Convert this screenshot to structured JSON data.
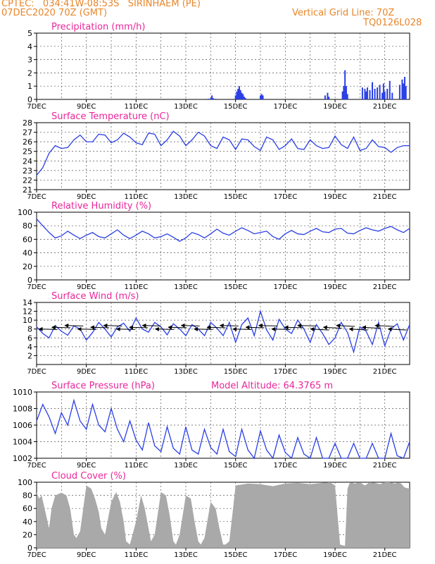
{
  "header": {
    "line1": "CPTEC:   034:41W-08:53S   SIRINHAEM (PE)",
    "line2": "07DEC2020 70Z (GMT)",
    "grid_note": "Vertical Grid Line: 70Z",
    "code": "TQ0126L028",
    "model_altitude": "Model Altitude: 64.3765 m"
  },
  "colors": {
    "header": "#e8862a",
    "title": "#e8279a",
    "series": "#2a3fe6",
    "bars": "#2a3fe6",
    "cloud": "#a9a9a9",
    "arrow": "#000000"
  },
  "x_tick_labels": [
    "7DEC",
    "9DEC",
    "11DEC",
    "13DEC",
    "15DEC",
    "17DEC",
    "19DEC",
    "21DEC"
  ],
  "chart_data": [
    {
      "type": "bar",
      "title": "Precipitation (mm/h)",
      "xlabel": "",
      "ylabel": "",
      "x_range_days": [
        7,
        22
      ],
      "ylim": [
        0,
        5
      ],
      "yticks": [
        "0",
        "1",
        "2",
        "3",
        "4",
        "5"
      ],
      "grid": true,
      "points": [
        [
          13.9,
          0.05
        ],
        [
          14.0,
          0.1
        ],
        [
          14.05,
          0.3
        ],
        [
          14.1,
          0.1
        ],
        [
          14.2,
          0.05
        ],
        [
          15.0,
          0.3
        ],
        [
          15.05,
          0.6
        ],
        [
          15.1,
          0.8
        ],
        [
          15.15,
          1.0
        ],
        [
          15.2,
          0.7
        ],
        [
          15.25,
          0.5
        ],
        [
          15.3,
          0.4
        ],
        [
          15.35,
          0.2
        ],
        [
          15.4,
          0.1
        ],
        [
          16.0,
          0.3
        ],
        [
          16.05,
          0.4
        ],
        [
          16.1,
          0.3
        ],
        [
          18.6,
          0.3
        ],
        [
          18.7,
          0.5
        ],
        [
          18.75,
          0.2
        ],
        [
          19.3,
          0.6
        ],
        [
          19.35,
          1.0
        ],
        [
          19.4,
          2.2
        ],
        [
          19.45,
          1.0
        ],
        [
          19.5,
          0.4
        ],
        [
          20.1,
          0.9
        ],
        [
          20.2,
          0.8
        ],
        [
          20.25,
          0.6
        ],
        [
          20.3,
          0.9
        ],
        [
          20.4,
          0.7
        ],
        [
          20.5,
          1.3
        ],
        [
          20.6,
          0.8
        ],
        [
          20.7,
          0.9
        ],
        [
          20.8,
          1.1
        ],
        [
          20.9,
          0.5
        ],
        [
          20.95,
          1.2
        ],
        [
          21.0,
          0.6
        ],
        [
          21.1,
          0.8
        ],
        [
          21.2,
          1.4
        ],
        [
          21.3,
          0.5
        ],
        [
          21.6,
          1.1
        ],
        [
          21.7,
          1.5
        ],
        [
          21.75,
          1.2
        ],
        [
          21.8,
          1.7
        ],
        [
          21.85,
          1.0
        ]
      ]
    },
    {
      "type": "line",
      "title": "Surface Temperature (nC)",
      "xlabel": "",
      "ylabel": "",
      "x_range_days": [
        7,
        22
      ],
      "ylim": [
        21,
        28
      ],
      "yticks": [
        "21",
        "22",
        "23",
        "24",
        "25",
        "26",
        "27",
        "28"
      ],
      "grid": true,
      "x": [
        7.0,
        7.25,
        7.5,
        7.75,
        8.0,
        8.25,
        8.5,
        8.75,
        9.0,
        9.25,
        9.5,
        9.75,
        10.0,
        10.25,
        10.5,
        10.75,
        11.0,
        11.25,
        11.5,
        11.75,
        12.0,
        12.25,
        12.5,
        12.75,
        13.0,
        13.25,
        13.5,
        13.75,
        14.0,
        14.25,
        14.5,
        14.75,
        15.0,
        15.25,
        15.5,
        15.75,
        16.0,
        16.25,
        16.5,
        16.75,
        17.0,
        17.25,
        17.5,
        17.75,
        18.0,
        18.25,
        18.5,
        18.75,
        19.0,
        19.25,
        19.5,
        19.75,
        20.0,
        20.25,
        20.5,
        20.75,
        21.0,
        21.25,
        21.5,
        21.75,
        22.0
      ],
      "y": [
        22.5,
        23.3,
        24.8,
        25.6,
        25.3,
        25.4,
        26.2,
        26.7,
        26.0,
        26.0,
        26.8,
        26.7,
        25.9,
        26.2,
        26.9,
        26.5,
        25.9,
        25.7,
        26.9,
        26.8,
        25.6,
        26.2,
        27.1,
        26.6,
        25.6,
        26.2,
        27.0,
        26.6,
        25.6,
        25.3,
        26.5,
        26.2,
        25.2,
        26.3,
        26.2,
        25.5,
        25.1,
        26.5,
        26.2,
        25.2,
        25.6,
        26.3,
        25.3,
        25.2,
        26.2,
        25.6,
        25.3,
        25.4,
        26.6,
        25.7,
        25.3,
        26.5,
        25.1,
        25.3,
        26.2,
        25.5,
        25.4,
        24.9,
        25.4,
        25.6,
        25.6
      ]
    },
    {
      "type": "line",
      "title": "Relative Humidity (%)",
      "xlabel": "",
      "ylabel": "",
      "x_range_days": [
        7,
        22
      ],
      "ylim": [
        0,
        100
      ],
      "yticks": [
        "0",
        "20",
        "40",
        "60",
        "80",
        "100"
      ],
      "grid": true,
      "x": [
        7.0,
        7.25,
        7.5,
        7.75,
        8.0,
        8.25,
        8.5,
        8.75,
        9.0,
        9.25,
        9.5,
        9.75,
        10.0,
        10.25,
        10.5,
        10.75,
        11.0,
        11.25,
        11.5,
        11.75,
        12.0,
        12.25,
        12.5,
        12.75,
        13.0,
        13.25,
        13.5,
        13.75,
        14.0,
        14.25,
        14.5,
        14.75,
        15.0,
        15.25,
        15.5,
        15.75,
        16.0,
        16.25,
        16.5,
        16.75,
        17.0,
        17.25,
        17.5,
        17.75,
        18.0,
        18.25,
        18.5,
        18.75,
        19.0,
        19.25,
        19.5,
        19.75,
        20.0,
        20.25,
        20.5,
        20.75,
        21.0,
        21.25,
        21.5,
        21.75,
        22.0
      ],
      "y": [
        90,
        80,
        70,
        62,
        65,
        72,
        66,
        61,
        66,
        70,
        64,
        62,
        68,
        74,
        66,
        61,
        66,
        72,
        68,
        62,
        64,
        68,
        63,
        57,
        62,
        70,
        67,
        62,
        68,
        75,
        69,
        66,
        72,
        77,
        73,
        68,
        70,
        72,
        64,
        60,
        68,
        73,
        68,
        67,
        72,
        76,
        71,
        70,
        75,
        76,
        69,
        68,
        73,
        77,
        74,
        72,
        76,
        79,
        74,
        70,
        76
      ]
    },
    {
      "type": "line",
      "title": "Surface Wind (m/s)",
      "xlabel": "",
      "ylabel": "",
      "x_range_days": [
        7,
        22
      ],
      "ylim": [
        0,
        14
      ],
      "yticks": [
        "2",
        "4",
        "6",
        "8",
        "10",
        "12",
        "14"
      ],
      "grid": true,
      "x": [
        7.0,
        7.25,
        7.5,
        7.75,
        8.0,
        8.25,
        8.5,
        8.75,
        9.0,
        9.25,
        9.5,
        9.75,
        10.0,
        10.25,
        10.5,
        10.75,
        11.0,
        11.25,
        11.5,
        11.75,
        12.0,
        12.25,
        12.5,
        12.75,
        13.0,
        13.25,
        13.5,
        13.75,
        14.0,
        14.25,
        14.5,
        14.75,
        15.0,
        15.25,
        15.5,
        15.75,
        16.0,
        16.25,
        16.5,
        16.75,
        17.0,
        17.25,
        17.5,
        17.75,
        18.0,
        18.25,
        18.5,
        18.75,
        19.0,
        19.25,
        19.5,
        19.75,
        20.0,
        20.25,
        20.5,
        20.75,
        21.0,
        21.25,
        21.5,
        21.75,
        22.0
      ],
      "y": [
        8.5,
        7.0,
        6.0,
        8.8,
        7.5,
        6.6,
        8.7,
        8.0,
        5.5,
        7.2,
        9.5,
        8.0,
        6.2,
        8.5,
        9.3,
        7.5,
        10.5,
        8.0,
        7.3,
        9.5,
        8.5,
        6.7,
        9.2,
        8.0,
        6.5,
        9.0,
        8.0,
        6.5,
        9.5,
        8.2,
        6.5,
        9.5,
        5.0,
        9.0,
        10.5,
        6.5,
        12.0,
        7.8,
        5.5,
        10.2,
        8.0,
        7.0,
        10.0,
        8.0,
        5.0,
        9.0,
        7.0,
        4.5,
        6.0,
        9.5,
        7.2,
        2.8,
        8.5,
        7.5,
        4.5,
        9.5,
        4.2,
        8.0,
        9.2,
        5.5,
        9.0
      ]
    },
    {
      "type": "line",
      "title": "Surface Pressure (hPa)",
      "xlabel": "",
      "ylabel": "",
      "x_range_days": [
        7,
        22
      ],
      "ylim": [
        1002,
        1010
      ],
      "yticks": [
        "1002",
        "1004",
        "1006",
        "1008",
        "1010"
      ],
      "grid": true,
      "x": [
        7.0,
        7.25,
        7.5,
        7.75,
        8.0,
        8.25,
        8.5,
        8.75,
        9.0,
        9.25,
        9.5,
        9.75,
        10.0,
        10.25,
        10.5,
        10.75,
        11.0,
        11.25,
        11.5,
        11.75,
        12.0,
        12.25,
        12.5,
        12.75,
        13.0,
        13.25,
        13.5,
        13.75,
        14.0,
        14.25,
        14.5,
        14.75,
        15.0,
        15.25,
        15.5,
        15.75,
        16.0,
        16.25,
        16.5,
        16.75,
        17.0,
        17.25,
        17.5,
        17.75,
        18.0,
        18.25,
        18.5,
        18.75,
        19.0,
        19.25,
        19.5,
        19.75,
        20.0,
        20.25,
        20.5,
        20.75,
        21.0,
        21.25,
        21.5,
        21.75,
        22.0
      ],
      "y": [
        1006.5,
        1008.5,
        1007.0,
        1005.0,
        1007.5,
        1006.0,
        1009.0,
        1006.5,
        1005.5,
        1008.5,
        1006.0,
        1005.2,
        1008.0,
        1005.5,
        1004.0,
        1006.5,
        1004.2,
        1003.0,
        1006.3,
        1003.5,
        1002.8,
        1005.8,
        1003.2,
        1002.5,
        1005.8,
        1003.0,
        1002.5,
        1005.5,
        1003.3,
        1002.5,
        1005.5,
        1002.8,
        1002.2,
        1005.5,
        1003.0,
        1002.0,
        1005.3,
        1003.0,
        1001.8,
        1004.8,
        1002.7,
        1001.8,
        1004.5,
        1002.5,
        1001.8,
        1004.5,
        1001.8,
        1001.3,
        1003.8,
        1001.8,
        1001.3,
        1003.8,
        1001.5,
        1001.2,
        1003.8,
        1001.8,
        1002.0,
        1005.0,
        1002.3,
        1002.0,
        1004.0
      ]
    },
    {
      "type": "area",
      "title": "Cloud Cover (%)",
      "xlabel": "",
      "ylabel": "",
      "x_range_days": [
        7,
        22
      ],
      "ylim": [
        0,
        100
      ],
      "yticks": [
        "0",
        "20",
        "40",
        "60",
        "80",
        "100"
      ],
      "grid": true,
      "x": [
        7.0,
        7.1,
        7.2,
        7.35,
        7.5,
        7.6,
        7.75,
        8.0,
        8.2,
        8.35,
        8.5,
        8.6,
        8.75,
        9.0,
        9.2,
        9.35,
        9.5,
        9.6,
        9.75,
        10.0,
        10.2,
        10.35,
        10.5,
        10.6,
        10.75,
        11.0,
        11.2,
        11.35,
        11.5,
        11.6,
        11.75,
        12.0,
        12.2,
        12.35,
        12.5,
        12.6,
        12.75,
        13.0,
        13.2,
        13.35,
        13.5,
        13.6,
        13.75,
        14.0,
        14.2,
        14.35,
        14.5,
        14.6,
        14.75,
        14.9,
        15.0,
        15.5,
        16.0,
        16.5,
        17.0,
        17.5,
        18.0,
        18.5,
        18.8,
        19.0,
        19.2,
        19.4,
        19.5,
        19.6,
        19.8,
        20.0,
        20.2,
        20.4,
        20.6,
        20.8,
        21.0,
        21.2,
        21.4,
        21.6,
        21.8,
        22.0
      ],
      "y": [
        85,
        75,
        80,
        55,
        30,
        60,
        80,
        84,
        80,
        60,
        20,
        15,
        25,
        95,
        90,
        75,
        55,
        30,
        20,
        70,
        85,
        70,
        40,
        10,
        5,
        40,
        80,
        60,
        30,
        10,
        20,
        85,
        80,
        50,
        10,
        5,
        20,
        80,
        75,
        40,
        10,
        5,
        15,
        70,
        60,
        30,
        5,
        5,
        10,
        60,
        95,
        98,
        97,
        94,
        98,
        99,
        97,
        99,
        100,
        95,
        5,
        3,
        90,
        100,
        98,
        100,
        95,
        100,
        99,
        97,
        100,
        100,
        98,
        100,
        92,
        90
      ]
    }
  ]
}
